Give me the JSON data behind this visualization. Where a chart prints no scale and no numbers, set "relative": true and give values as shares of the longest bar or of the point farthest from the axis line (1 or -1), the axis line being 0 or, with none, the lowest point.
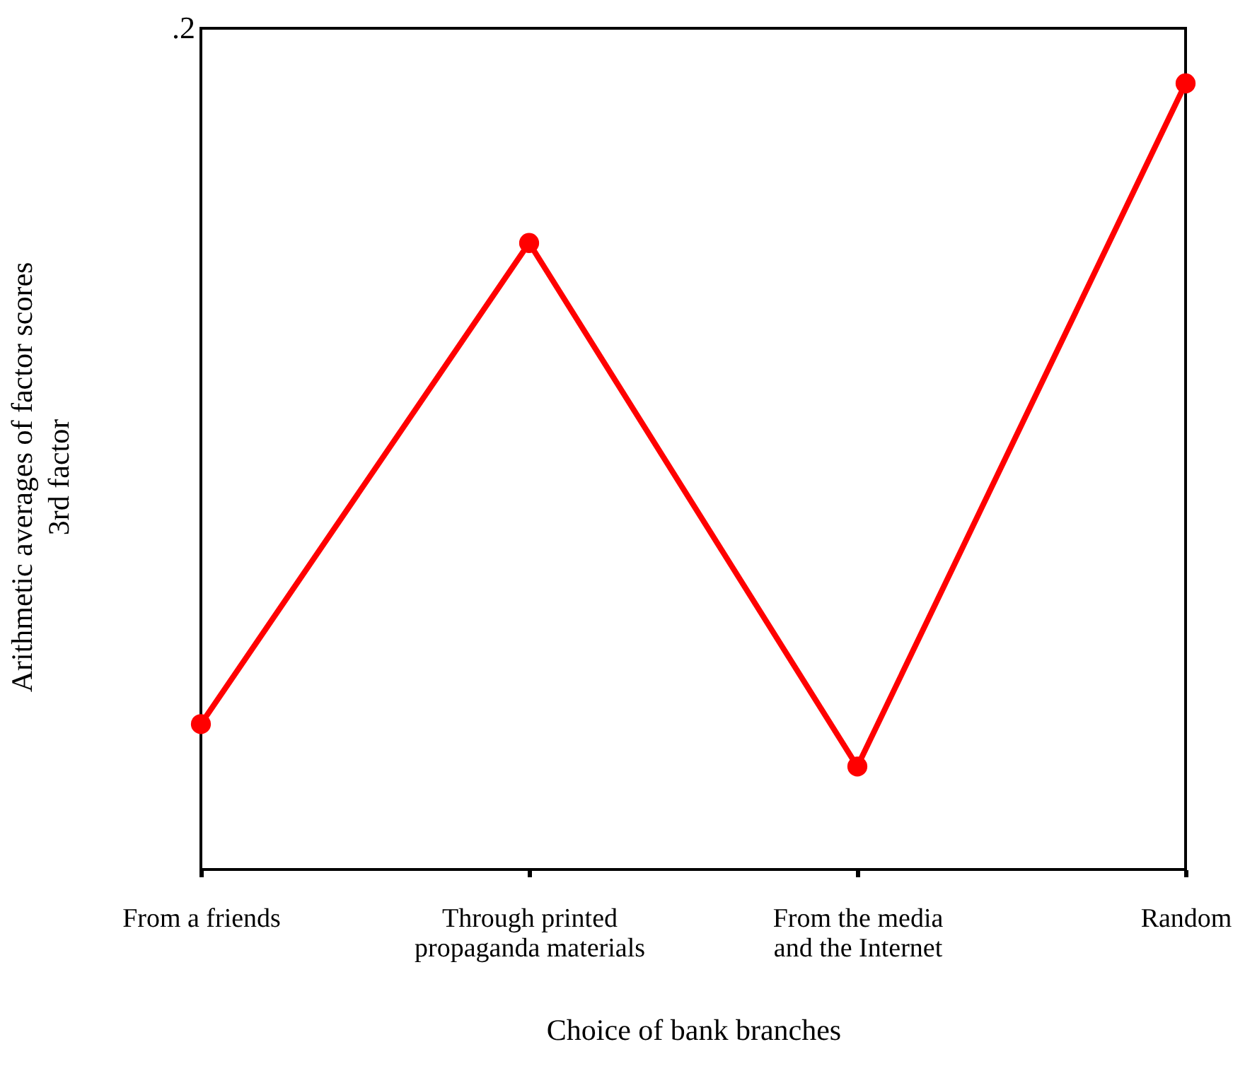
{
  "chart_data": {
    "type": "line",
    "relative": true,
    "xlabel": "Choice of bank branches",
    "ylabel": "Arithmetic averages of factor scores\n3rd factor",
    "categories": [
      "From a friends",
      "Through printed\npropaganda materials",
      "From the media\nand the Internet",
      "Random"
    ],
    "series": [
      {
        "color": "#ff0000",
        "values": [
          0.185,
          0.797,
          0.131,
          1
        ]
      }
    ],
    "marker": "circle",
    "line_style": "solid",
    "annotations": [
      ".2"
    ]
  }
}
